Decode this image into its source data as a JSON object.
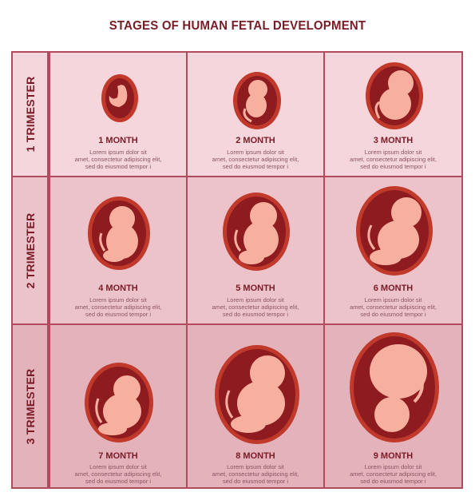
{
  "title": "STAGES OF HUMAN FETAL DEVELOPMENT",
  "colors": {
    "title": "#7a1c26",
    "border": "#b04a5c",
    "uterus_outer": "#c0392b",
    "uterus_inner": "#8e1b1f",
    "fetus": "#f7b0a0"
  },
  "trimesters": [
    {
      "label": "1 TRIMESTER",
      "row_bg": "#f4d6dc",
      "months": [
        {
          "label": "1 MONTH",
          "desc": [
            "Lorem ipsum dolor sit",
            "amet, consectetur adipiscing elit,",
            "sed do eiusmod tempor i"
          ]
        },
        {
          "label": "2 MONTH",
          "desc": [
            "Lorem ipsum dolor sit",
            "amet, consectetur adipiscing elit,",
            "sed do eiusmod tempor i"
          ]
        },
        {
          "label": "3 MONTH",
          "desc": [
            "Lorem ipsum dolor sit",
            "amet, consectetur adipiscing elit,",
            "sed do eiusmod tempor i"
          ]
        }
      ]
    },
    {
      "label": "2 TRIMESTER",
      "row_bg": "#ecc3cb",
      "months": [
        {
          "label": "4 MONTH",
          "desc": [
            "Lorem ipsum dolor sit",
            "amet, consectetur adipiscing elit,",
            "sed do eiusmod tempor i"
          ]
        },
        {
          "label": "5 MONTH",
          "desc": [
            "Lorem ipsum dolor sit",
            "amet, consectetur adipiscing elit,",
            "sed do eiusmod tempor i"
          ]
        },
        {
          "label": "6 MONTH",
          "desc": [
            "Lorem ipsum dolor sit",
            "amet, consectetur adipiscing elit,",
            "sed do eiusmod tempor i"
          ]
        }
      ]
    },
    {
      "label": "3 TRIMESTER",
      "row_bg": "#e3b2bb",
      "months": [
        {
          "label": "7 MONTH",
          "desc": [
            "Lorem ipsum dolor sit",
            "amet, consectetur adipiscing elit,",
            "sed do eiusmod tempor i"
          ]
        },
        {
          "label": "8 MONTH",
          "desc": [
            "Lorem ipsum dolor sit",
            "amet, consectetur adipiscing elit,",
            "sed do eiusmod tempor i"
          ]
        },
        {
          "label": "9 MONTH",
          "desc": [
            "Lorem ipsum dolor sit",
            "amet, consectetur adipiscing elit,",
            "sed do eiusmod tempor i"
          ]
        }
      ]
    }
  ]
}
